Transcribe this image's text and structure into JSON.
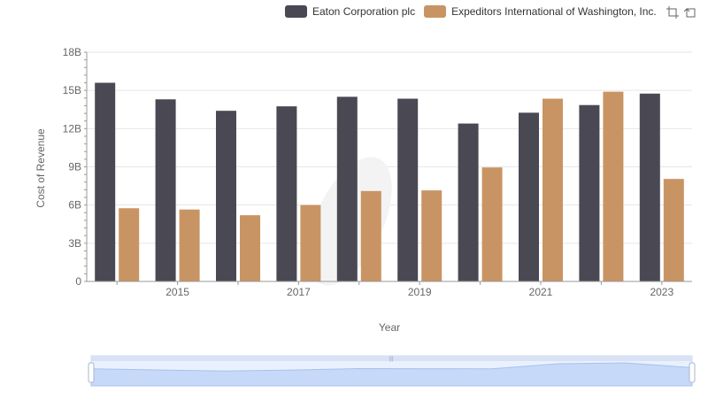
{
  "chart_data": {
    "type": "bar",
    "categories": [
      "2014",
      "2015",
      "2016",
      "2017",
      "2018",
      "2019",
      "2020",
      "2021",
      "2022",
      "2023"
    ],
    "x_tick_labels": [
      "2015",
      "2017",
      "2019",
      "2021",
      "2023"
    ],
    "y_tick_labels": [
      "0",
      "3B",
      "6B",
      "9B",
      "12B",
      "15B",
      "18B"
    ],
    "series": [
      {
        "name": "Eaton Corporation plc",
        "color": "#4a4953",
        "values": [
          15600000000,
          14300000000,
          13400000000,
          13750000000,
          14500000000,
          14350000000,
          12400000000,
          13250000000,
          13850000000,
          14750000000
        ]
      },
      {
        "name": "Expeditors International of Washington, Inc.",
        "color": "#c99463",
        "values": [
          5750000000,
          5650000000,
          5200000000,
          6000000000,
          7100000000,
          7150000000,
          8950000000,
          14350000000,
          14900000000,
          8050000000
        ]
      }
    ],
    "xlabel": "Year",
    "ylabel": "Cost of Revenue",
    "ylim": [
      0,
      18000000000
    ],
    "grid": true,
    "legend_position": "top-right"
  },
  "toolbar": {
    "zoom_icon": "zoom-select-icon",
    "restore_icon": "zoom-reset-icon"
  },
  "data_zoom": {
    "range_percent": [
      0,
      100
    ]
  }
}
